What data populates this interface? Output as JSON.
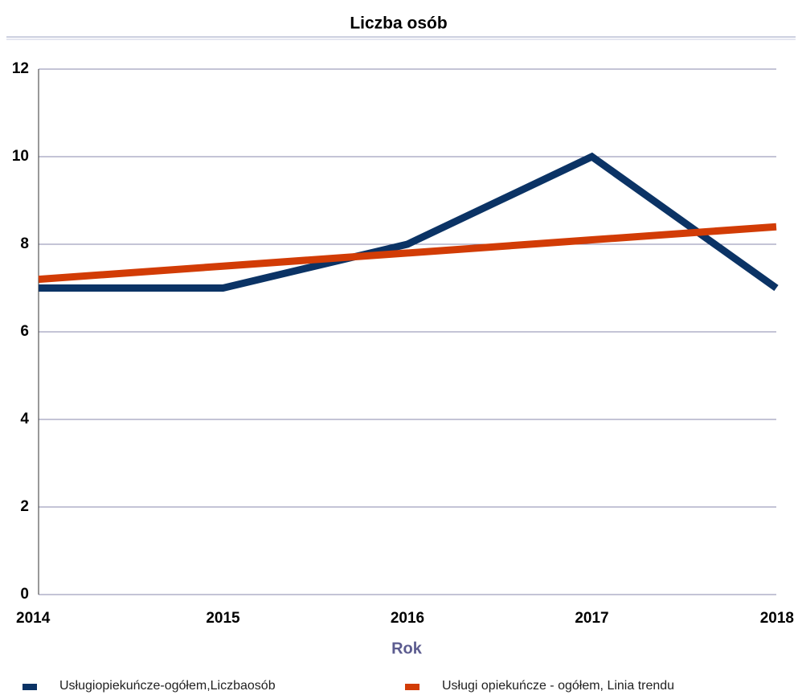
{
  "chart_data": {
    "type": "line",
    "title": "Liczba osób",
    "x_label": "Rok",
    "categories": [
      "2014",
      "2015",
      "2016",
      "2017",
      "2018"
    ],
    "series": [
      {
        "name": "Usługiopiekuńcze-ogółem,Liczbaosób",
        "color": "#0b3365",
        "values": [
          7,
          7,
          8,
          10,
          7
        ]
      },
      {
        "name": "Usługi opiekuńcze - ogółem, Linia trendu",
        "color": "#d23c06",
        "values": [
          7.2,
          7.5,
          7.8,
          8.1,
          8.4
        ]
      }
    ],
    "ylim": [
      0,
      12
    ],
    "yticks": [
      0,
      2,
      4,
      6,
      8,
      10,
      12
    ],
    "grid": true
  }
}
